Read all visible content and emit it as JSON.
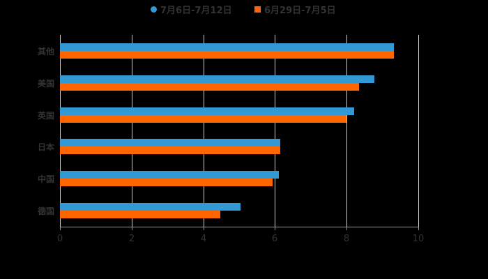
{
  "chart_data": {
    "type": "bar",
    "orientation": "horizontal",
    "title": "",
    "xlabel": "",
    "ylabel": "",
    "xlim": [
      0,
      10
    ],
    "x_ticks": [
      "0",
      "2",
      "4",
      "6",
      "8",
      "10"
    ],
    "grid": true,
    "legend_position": "top",
    "categories": [
      "其他",
      "美国",
      "英国",
      "日本",
      "中国",
      "德国"
    ],
    "series": [
      {
        "name": "7月6日-7月12日",
        "color": "#3399d5",
        "values": [
          9.32,
          8.77,
          8.21,
          6.15,
          6.11,
          5.04
        ]
      },
      {
        "name": "6月29日-7月5日",
        "color": "#ff6600",
        "values": [
          9.32,
          8.35,
          8.0,
          6.15,
          5.93,
          4.47
        ]
      }
    ]
  },
  "legend": {
    "items": [
      {
        "label": "7月6日-7月12日",
        "color": "#3399d5"
      },
      {
        "label": "6月29日-7月5日",
        "color": "#ff6600"
      }
    ]
  }
}
